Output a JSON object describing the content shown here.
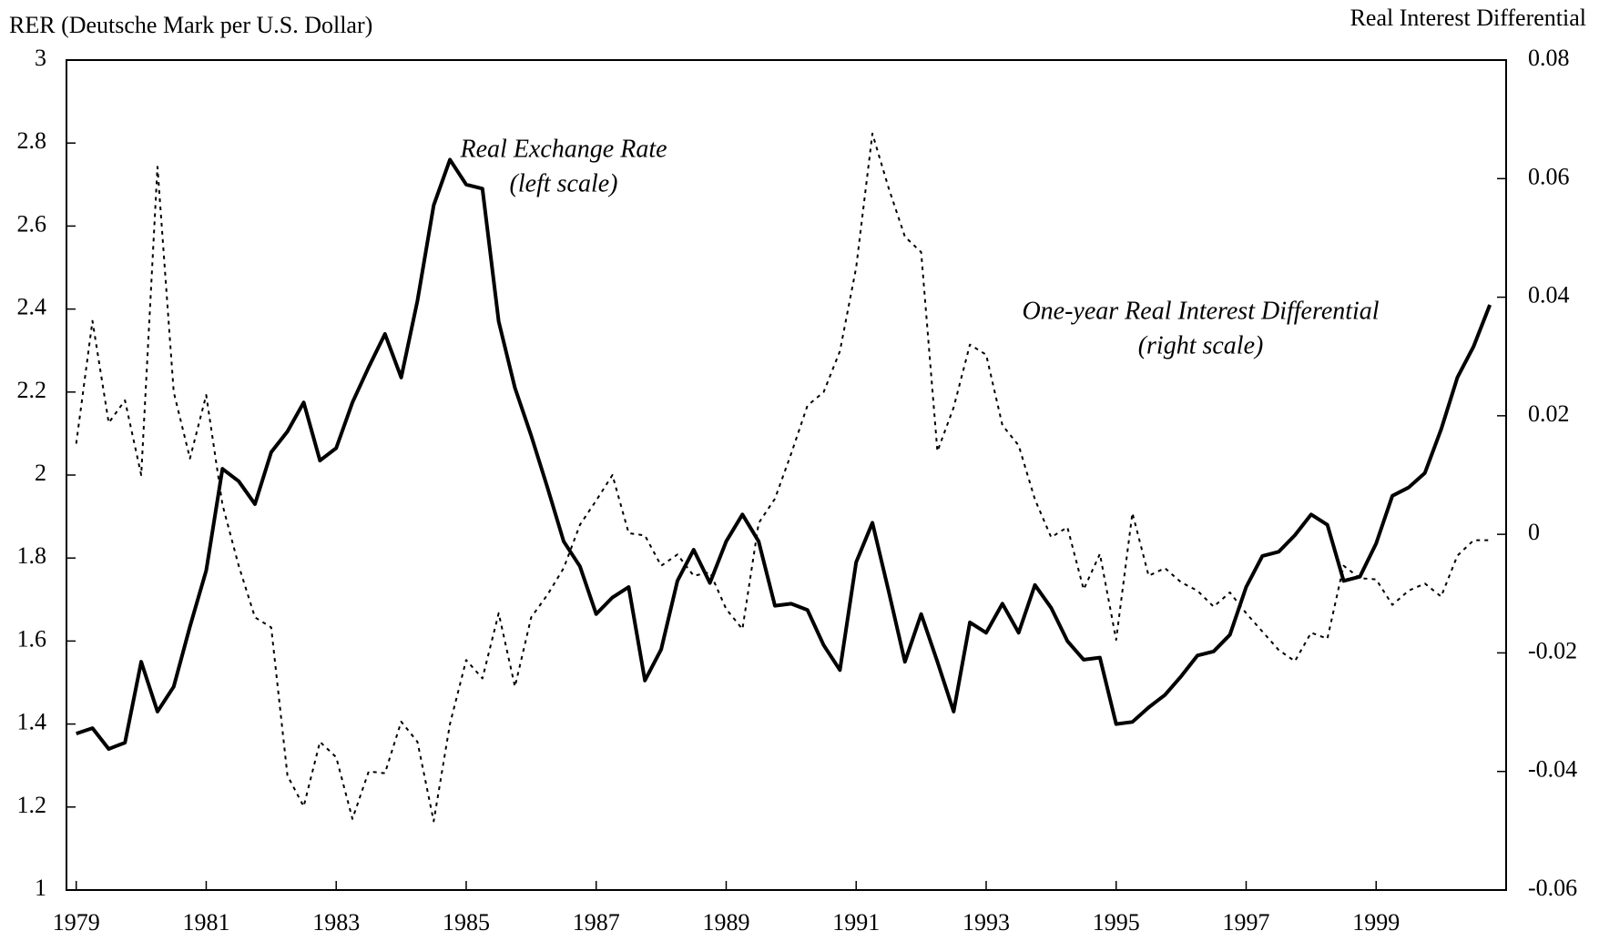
{
  "chart_data": {
    "type": "line",
    "ylabel": "RER (Deutsche Mark per U.S. Dollar)",
    "y2label": "Real Interest Differential",
    "annotations": [
      {
        "lines": [
          "Real Exchange Rate",
          "(left scale)"
        ],
        "x": 1986.5,
        "y": 2.78
      },
      {
        "lines": [
          "One-year Real Interest Differential",
          "(right scale)"
        ],
        "x": 1996.3,
        "y": 2.39
      }
    ],
    "xlim": [
      1978.85,
      2001
    ],
    "xticks": [
      1979,
      1981,
      1983,
      1985,
      1987,
      1989,
      1991,
      1993,
      1995,
      1997,
      1999
    ],
    "ylim": [
      1,
      3
    ],
    "yticks": [
      1,
      1.2,
      1.4,
      1.6,
      1.8,
      2,
      2.2,
      2.4,
      2.6,
      2.8,
      3
    ],
    "y2lim": [
      -0.06,
      0.08
    ],
    "y2ticks": [
      -0.06,
      -0.04,
      -0.02,
      0,
      0.02,
      0.04,
      0.06,
      0.08
    ],
    "x": [
      1979,
      1979.25,
      1979.5,
      1979.75,
      1980,
      1980.25,
      1980.5,
      1980.75,
      1981,
      1981.25,
      1981.5,
      1981.75,
      1982,
      1982.25,
      1982.5,
      1982.75,
      1983,
      1983.25,
      1983.5,
      1983.75,
      1984,
      1984.25,
      1984.5,
      1984.75,
      1985,
      1985.25,
      1985.5,
      1985.75,
      1986,
      1986.25,
      1986.5,
      1986.75,
      1987,
      1987.25,
      1987.5,
      1987.75,
      1988,
      1988.25,
      1988.5,
      1988.75,
      1989,
      1989.25,
      1989.5,
      1989.75,
      1990,
      1990.25,
      1990.5,
      1990.75,
      1991,
      1991.25,
      1991.5,
      1991.75,
      1992,
      1992.25,
      1992.5,
      1992.75,
      1993,
      1993.25,
      1993.5,
      1993.75,
      1994,
      1994.25,
      1994.5,
      1994.75,
      1995,
      1995.25,
      1995.5,
      1995.75,
      1996,
      1996.25,
      1996.5,
      1996.75,
      1997,
      1997.25,
      1997.5,
      1997.75,
      1998,
      1998.25,
      1998.5,
      1998.75,
      1999,
      1999.25,
      1999.5,
      1999.75,
      2000,
      2000.25,
      2000.5,
      2000.75
    ],
    "series": [
      {
        "name": "Real Exchange Rate",
        "color": "#000000",
        "line_style": "solid",
        "axis": "y",
        "values": [
          1.377,
          1.39,
          1.34,
          1.355,
          1.55,
          1.43,
          1.49,
          1.635,
          1.77,
          2.015,
          1.985,
          1.93,
          2.055,
          2.105,
          2.175,
          2.035,
          2.065,
          2.175,
          2.26,
          2.34,
          2.235,
          2.42,
          2.65,
          2.76,
          2.7,
          2.69,
          2.37,
          2.21,
          2.095,
          1.97,
          1.84,
          1.78,
          1.665,
          1.705,
          1.73,
          1.505,
          1.58,
          1.745,
          1.82,
          1.74,
          1.84,
          1.905,
          1.84,
          1.685,
          1.69,
          1.675,
          1.59,
          1.53,
          1.79,
          1.885,
          1.72,
          1.55,
          1.665,
          1.55,
          1.43,
          1.645,
          1.62,
          1.69,
          1.62,
          1.735,
          1.68,
          1.6,
          1.555,
          1.56,
          1.4,
          1.405,
          1.44,
          1.47,
          1.515,
          1.565,
          1.575,
          1.615,
          1.73,
          1.805,
          1.815,
          1.855,
          1.905,
          1.88,
          1.745,
          1.755,
          1.835,
          1.95,
          1.97,
          2.005,
          2.11,
          2.235,
          2.31,
          2.41
        ]
      },
      {
        "name": "One-year Real Interest Differential",
        "color": "#000000",
        "line_style": "dotted",
        "axis": "y2",
        "values": [
          0.0153,
          0.036,
          0.0188,
          0.0226,
          0.01,
          0.062,
          0.024,
          0.0128,
          0.0235,
          0.005,
          -0.0053,
          -0.014,
          -0.0157,
          -0.0407,
          -0.0459,
          -0.035,
          -0.0376,
          -0.048,
          -0.04,
          -0.0403,
          -0.0316,
          -0.035,
          -0.0484,
          -0.032,
          -0.0212,
          -0.0243,
          -0.0133,
          -0.0257,
          -0.014,
          -0.0102,
          -0.0057,
          0.0016,
          0.0057,
          0.01,
          0.0002,
          -0.0002,
          -0.0053,
          -0.0034,
          -0.007,
          -0.0064,
          -0.0126,
          -0.016,
          0.0019,
          0.006,
          0.0136,
          0.0217,
          0.024,
          0.0309,
          0.045,
          0.0676,
          0.0584,
          0.0502,
          0.0476,
          0.014,
          0.0214,
          0.032,
          0.0303,
          0.0184,
          0.015,
          0.0059,
          -0.0005,
          0.0012,
          -0.0093,
          -0.0033,
          -0.0178,
          0.0036,
          -0.007,
          -0.0057,
          -0.0081,
          -0.0095,
          -0.0122,
          -0.0098,
          -0.0133,
          -0.0164,
          -0.0195,
          -0.0214,
          -0.0166,
          -0.0176,
          -0.0053,
          -0.0074,
          -0.0076,
          -0.0119,
          -0.0095,
          -0.0083,
          -0.0105,
          -0.0036,
          -0.001,
          -0.001
        ]
      }
    ]
  }
}
